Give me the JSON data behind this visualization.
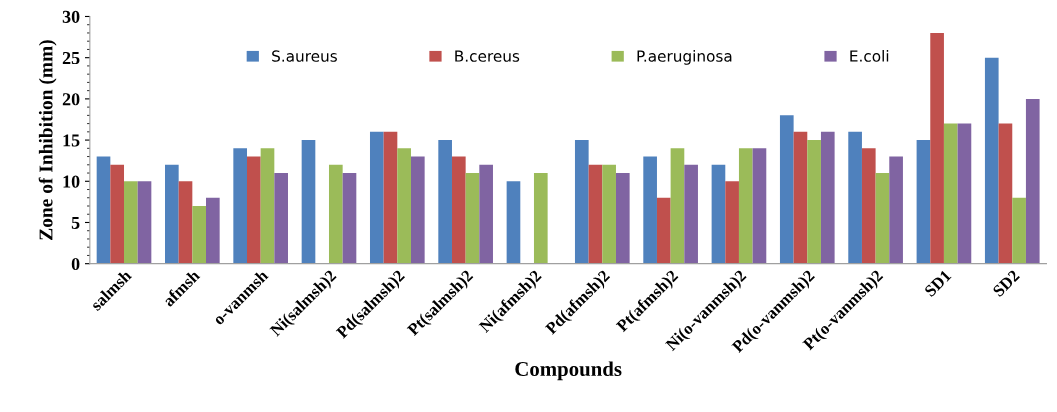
{
  "chart_data": {
    "type": "bar",
    "xlabel": "Compounds",
    "ylabel": "Zone of Inhibition (mm)",
    "categories": [
      "salmsh",
      "afmsh",
      "o-vanmsh",
      "Ni(salmsh)2",
      "Pd(salmsh)2",
      "Pt(salmsh)2",
      "Ni(afmsh)2",
      "Pd(afmsh)2",
      "Pt(afmsh)2",
      "Ni(o-vanmsh)2",
      "Pd(o-vanmsh)2",
      "Pt(o-vanmsh)2",
      "SD1",
      "SD2"
    ],
    "series": [
      {
        "name": "S.aureus",
        "color": "#4f81bd",
        "values": [
          13,
          12,
          14,
          15,
          16,
          15,
          10,
          15,
          13,
          12,
          18,
          16,
          15,
          25
        ]
      },
      {
        "name": "B.cereus",
        "color": "#c0504d",
        "values": [
          12,
          10,
          13,
          0,
          16,
          13,
          null,
          12,
          8,
          10,
          16,
          14,
          28,
          17
        ]
      },
      {
        "name": "P.aeruginosa",
        "color": "#9bbb59",
        "values": [
          10,
          7,
          14,
          12,
          14,
          11,
          11,
          12,
          14,
          14,
          15,
          11,
          17,
          8
        ]
      },
      {
        "name": "E.coli",
        "color": "#8064a2",
        "values": [
          10,
          8,
          11,
          11,
          13,
          12,
          null,
          11,
          12,
          14,
          16,
          13,
          17,
          20
        ]
      }
    ],
    "ylim": [
      0,
      30
    ],
    "yticks": [
      0,
      5,
      10,
      15,
      20,
      25,
      30
    ],
    "grid": false,
    "legend": "top"
  }
}
